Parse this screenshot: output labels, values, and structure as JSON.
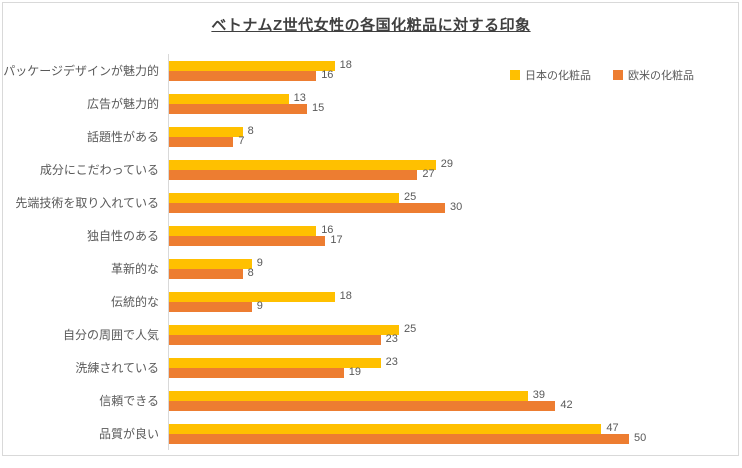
{
  "title": "ベトナムZ世代女性の各国化粧品に対する印象",
  "colors": {
    "japan": "#FFC000",
    "west": "#ED7D31",
    "text": "#595959",
    "title_text": "#404040",
    "axis_line": "#D9D9D9"
  },
  "chart_data": {
    "type": "bar",
    "orientation": "horizontal",
    "title": "ベトナムZ世代女性の各国化粧品に対する印象",
    "categories": [
      "パッケージデザインが魅力的",
      "広告が魅力的",
      "話題性がある",
      "成分にこだわっている",
      "先端技術を取り入れている",
      "独自性のある",
      "革新的な",
      "伝統的な",
      "自分の周囲で人気",
      "洗練されている",
      "信頼できる",
      "品質が良い"
    ],
    "series": [
      {
        "name": "日本の化粧品",
        "color": "#FFC000",
        "values": [
          18,
          13,
          8,
          29,
          25,
          16,
          9,
          18,
          25,
          23,
          39,
          47
        ]
      },
      {
        "name": "欧米の化粧品",
        "color": "#ED7D31",
        "values": [
          16,
          15,
          7,
          27,
          30,
          17,
          8,
          9,
          23,
          19,
          42,
          50
        ]
      }
    ],
    "value_axis_max": 50,
    "data_labels": true,
    "gridlines": false,
    "legend_position": "top-right",
    "category_axis_side": "left"
  }
}
